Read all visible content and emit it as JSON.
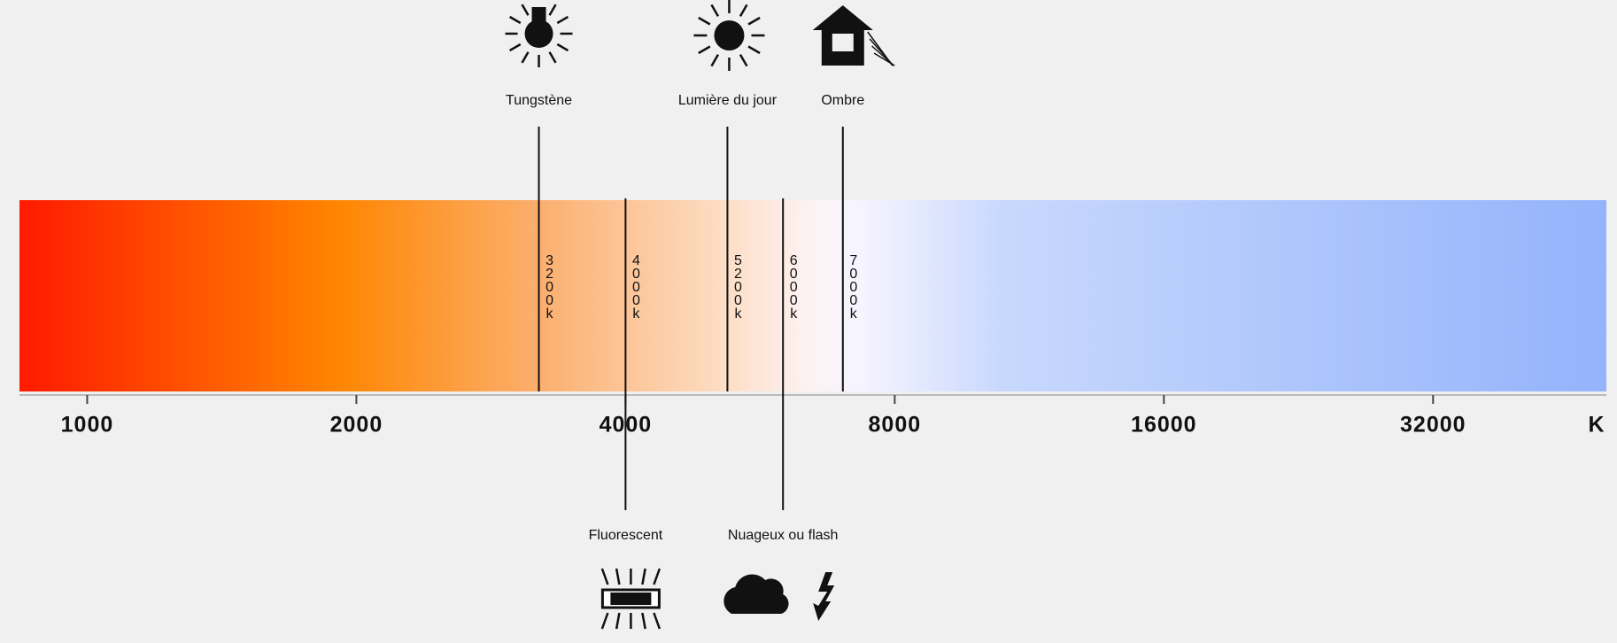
{
  "chart_data": {
    "type": "colorscale",
    "log_scale": true,
    "xlim": [
      840,
      50000
    ],
    "xticks": [
      1000,
      2000,
      4000,
      8000,
      16000,
      32000
    ],
    "unit": "K",
    "markers": [
      {
        "label": "Tungstène",
        "value": 3200,
        "value_label": "3200k",
        "side": "top"
      },
      {
        "label": "Fluorescent",
        "value": 4000,
        "value_label": "4000k",
        "side": "bottom"
      },
      {
        "label": "Lumière du jour",
        "value": 5200,
        "value_label": "5200k",
        "side": "top"
      },
      {
        "label": "Nuageux ou flash",
        "value": 6000,
        "value_label": "6000k",
        "side": "bottom"
      },
      {
        "label": "Ombre",
        "value": 7000,
        "value_label": "7000k",
        "side": "top"
      }
    ]
  }
}
